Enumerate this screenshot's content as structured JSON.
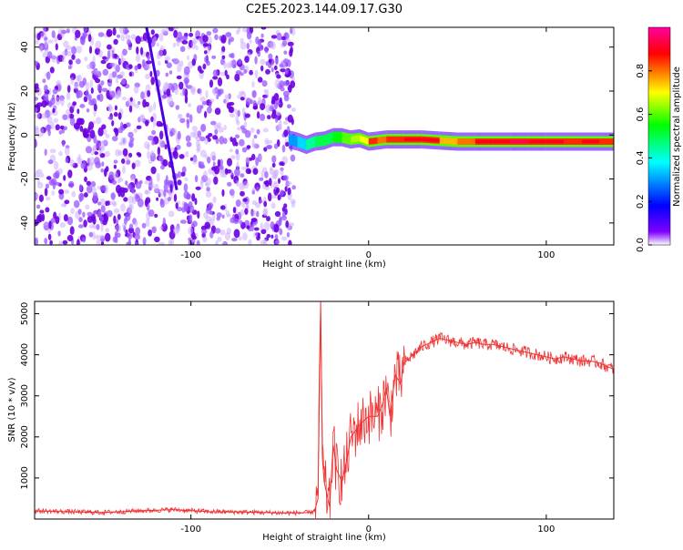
{
  "title": "C2E5.2023.144.09.17.G30",
  "chart_data": [
    {
      "type": "heatmap",
      "xlabel": "Height of straight line (km)",
      "ylabel": "Frequency (Hz)",
      "xlim": [
        -188,
        138
      ],
      "ylim": [
        -50,
        49
      ],
      "x_ticks": [
        -100,
        0,
        100
      ],
      "y_ticks": [
        -40,
        -20,
        0,
        20,
        40
      ],
      "colorbar": {
        "label": "Normalized spectral amplitude",
        "range": [
          0,
          1
        ],
        "ticks": [
          "0.0",
          "0.2",
          "0.4",
          "0.6",
          "0.8"
        ],
        "colors": [
          "#ffffff",
          "#8000ff",
          "#0000ff",
          "#00ffff",
          "#00ff00",
          "#ffff00",
          "#ff0000",
          "#ff00a0"
        ]
      },
      "features": {
        "noise_region_x": [
          -188,
          -42
        ],
        "streak": {
          "x": [
            -125,
            -108
          ],
          "y": [
            49,
            -25
          ]
        },
        "signal_line": {
          "x": [
            -45,
            -40,
            -35,
            -30,
            -25,
            -20,
            -15,
            -10,
            -5,
            0,
            5,
            10,
            20,
            30,
            40,
            50,
            60,
            70,
            80,
            90,
            100,
            110,
            120,
            130,
            138
          ],
          "y": [
            -2,
            -3,
            -4.5,
            -3,
            -2.5,
            -1,
            -1,
            -2,
            -1.5,
            -3,
            -2.5,
            -2,
            -2,
            -2,
            -2.5,
            -3,
            -3,
            -3,
            -3,
            -3,
            -3,
            -3,
            -3,
            -3,
            -3
          ],
          "amplitude": [
            0.3,
            0.35,
            0.45,
            0.5,
            0.5,
            0.55,
            0.6,
            0.65,
            0.7,
            0.85,
            0.8,
            0.85,
            0.9,
            0.9,
            0.75,
            0.8,
            0.9,
            0.9,
            0.95,
            0.9,
            0.9,
            0.85,
            0.9,
            0.85,
            0.8
          ]
        }
      }
    },
    {
      "type": "line",
      "xlabel": "Height of straight line (km)",
      "ylabel": "SNR (10 * v/v)",
      "xlim": [
        -188,
        138
      ],
      "ylim": [
        0,
        5300
      ],
      "x_ticks": [
        -100,
        0,
        100
      ],
      "y_ticks": [
        1000,
        2000,
        3000,
        4000,
        5000
      ],
      "color": "#ee3333",
      "x": [
        -188,
        -170,
        -150,
        -130,
        -110,
        -90,
        -70,
        -50,
        -40,
        -32,
        -30,
        -28.5,
        -27,
        -26,
        -25,
        -22,
        -20,
        -18,
        -15,
        -12,
        -10,
        -5,
        0,
        5,
        8,
        10,
        12,
        15,
        18,
        20,
        25,
        30,
        35,
        40,
        45,
        50,
        55,
        60,
        65,
        70,
        75,
        80,
        85,
        90,
        95,
        100,
        105,
        110,
        115,
        120,
        125,
        130,
        135,
        138
      ],
      "y": [
        200,
        180,
        160,
        200,
        230,
        180,
        170,
        150,
        150,
        160,
        250,
        500,
        5300,
        1500,
        900,
        300,
        1800,
        1200,
        900,
        1500,
        2000,
        2300,
        2500,
        2500,
        2800,
        3200,
        2500,
        3500,
        3300,
        3800,
        4000,
        4200,
        4300,
        4400,
        4350,
        4300,
        4250,
        4300,
        4250,
        4250,
        4200,
        4150,
        4100,
        4050,
        4000,
        3950,
        3900,
        3950,
        3900,
        3850,
        3850,
        3800,
        3700,
        3650
      ]
    }
  ]
}
